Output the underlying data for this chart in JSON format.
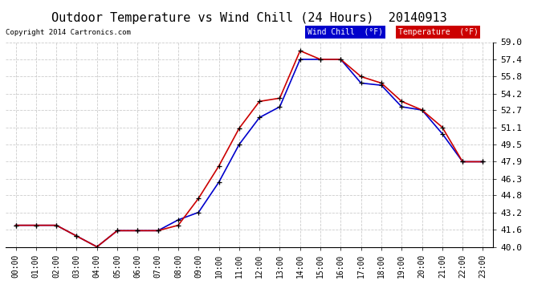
{
  "title": "Outdoor Temperature vs Wind Chill (24 Hours)  20140913",
  "copyright": "Copyright 2014 Cartronics.com",
  "hours": [
    "00:00",
    "01:00",
    "02:00",
    "03:00",
    "04:00",
    "05:00",
    "06:00",
    "07:00",
    "08:00",
    "09:00",
    "10:00",
    "11:00",
    "12:00",
    "13:00",
    "14:00",
    "15:00",
    "16:00",
    "17:00",
    "18:00",
    "19:00",
    "20:00",
    "21:00",
    "22:00",
    "23:00"
  ],
  "temperature": [
    42.0,
    42.0,
    42.0,
    41.0,
    40.0,
    41.5,
    41.5,
    41.5,
    42.0,
    44.5,
    47.5,
    51.0,
    53.5,
    53.8,
    58.2,
    57.4,
    57.4,
    55.8,
    55.2,
    53.5,
    52.7,
    51.1,
    47.9,
    47.9
  ],
  "wind_chill": [
    42.0,
    42.0,
    42.0,
    41.0,
    40.0,
    41.5,
    41.5,
    41.5,
    42.5,
    43.2,
    46.0,
    49.5,
    52.0,
    53.0,
    57.4,
    57.4,
    57.4,
    55.2,
    55.0,
    53.0,
    52.7,
    50.5,
    47.9,
    47.9
  ],
  "temp_color": "#cc0000",
  "wind_chill_color": "#0000cc",
  "ylim_min": 40.0,
  "ylim_max": 59.0,
  "ytick_values": [
    40.0,
    41.6,
    43.2,
    44.8,
    46.3,
    47.9,
    49.5,
    51.1,
    52.7,
    54.2,
    55.8,
    57.4,
    59.0
  ],
  "ytick_labels": [
    "40.0",
    "41.6",
    "43.2",
    "44.8",
    "46.3",
    "47.9",
    "49.5",
    "51.1",
    "52.7",
    "54.2",
    "55.8",
    "57.4",
    "59.0"
  ],
  "bg_color": "#ffffff",
  "grid_color": "#cccccc",
  "title_fontsize": 11,
  "legend_wind_label": "Wind Chill  (°F)",
  "legend_temp_label": "Temperature  (°F)"
}
